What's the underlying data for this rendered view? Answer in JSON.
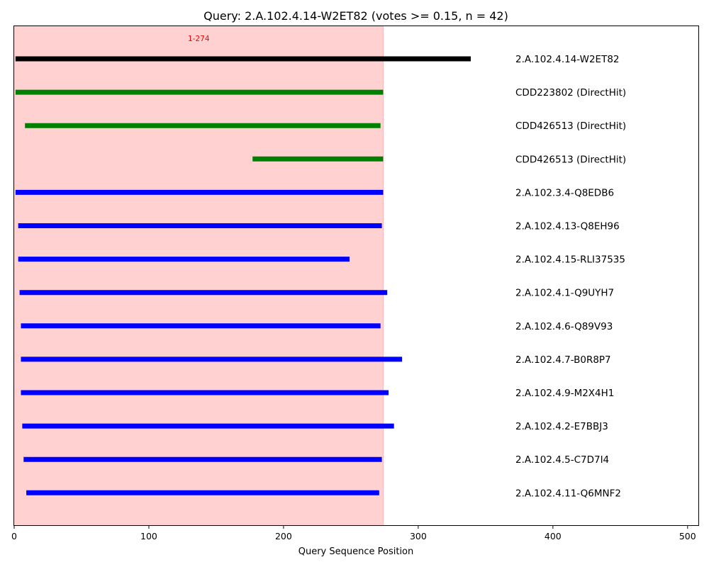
{
  "chart_data": {
    "type": "bar",
    "subtype": "horizontal-range",
    "title": "Query: 2.A.102.4.14-W2ET82 (votes >= 0.15, n = 42)",
    "xlabel": "Query Sequence Position",
    "ylabel": "",
    "xlim": [
      0,
      508
    ],
    "xticks": [
      0,
      100,
      200,
      300,
      400,
      500
    ],
    "grid": false,
    "region": {
      "start": 1,
      "end": 274,
      "label": "1-274",
      "color": "#ff9999",
      "opacity": 0.45
    },
    "colors": {
      "query": "#000000",
      "direct_hit": "#008000",
      "homolog": "#0000ff"
    },
    "rows": [
      {
        "label": "2.A.102.4.14-W2ET82",
        "start": 1,
        "end": 339,
        "kind": "query"
      },
      {
        "label": "CDD223802 (DirectHit)",
        "start": 1,
        "end": 274,
        "kind": "direct_hit"
      },
      {
        "label": "CDD426513 (DirectHit)",
        "start": 8,
        "end": 272,
        "kind": "direct_hit"
      },
      {
        "label": "CDD426513 (DirectHit)",
        "start": 177,
        "end": 274,
        "kind": "direct_hit"
      },
      {
        "label": "2.A.102.3.4-Q8EDB6",
        "start": 1,
        "end": 274,
        "kind": "homolog"
      },
      {
        "label": "2.A.102.4.13-Q8EH96",
        "start": 3,
        "end": 273,
        "kind": "homolog"
      },
      {
        "label": "2.A.102.4.15-RLI37535",
        "start": 3,
        "end": 249,
        "kind": "homolog"
      },
      {
        "label": "2.A.102.4.1-Q9UYH7",
        "start": 4,
        "end": 277,
        "kind": "homolog"
      },
      {
        "label": "2.A.102.4.6-Q89V93",
        "start": 5,
        "end": 272,
        "kind": "homolog"
      },
      {
        "label": "2.A.102.4.7-B0R8P7",
        "start": 5,
        "end": 288,
        "kind": "homolog"
      },
      {
        "label": "2.A.102.4.9-M2X4H1",
        "start": 5,
        "end": 278,
        "kind": "homolog"
      },
      {
        "label": "2.A.102.4.2-E7BBJ3",
        "start": 6,
        "end": 282,
        "kind": "homolog"
      },
      {
        "label": "2.A.102.4.5-C7D7I4",
        "start": 7,
        "end": 273,
        "kind": "homolog"
      },
      {
        "label": "2.A.102.4.11-Q6MNF2",
        "start": 9,
        "end": 271,
        "kind": "homolog"
      }
    ]
  }
}
